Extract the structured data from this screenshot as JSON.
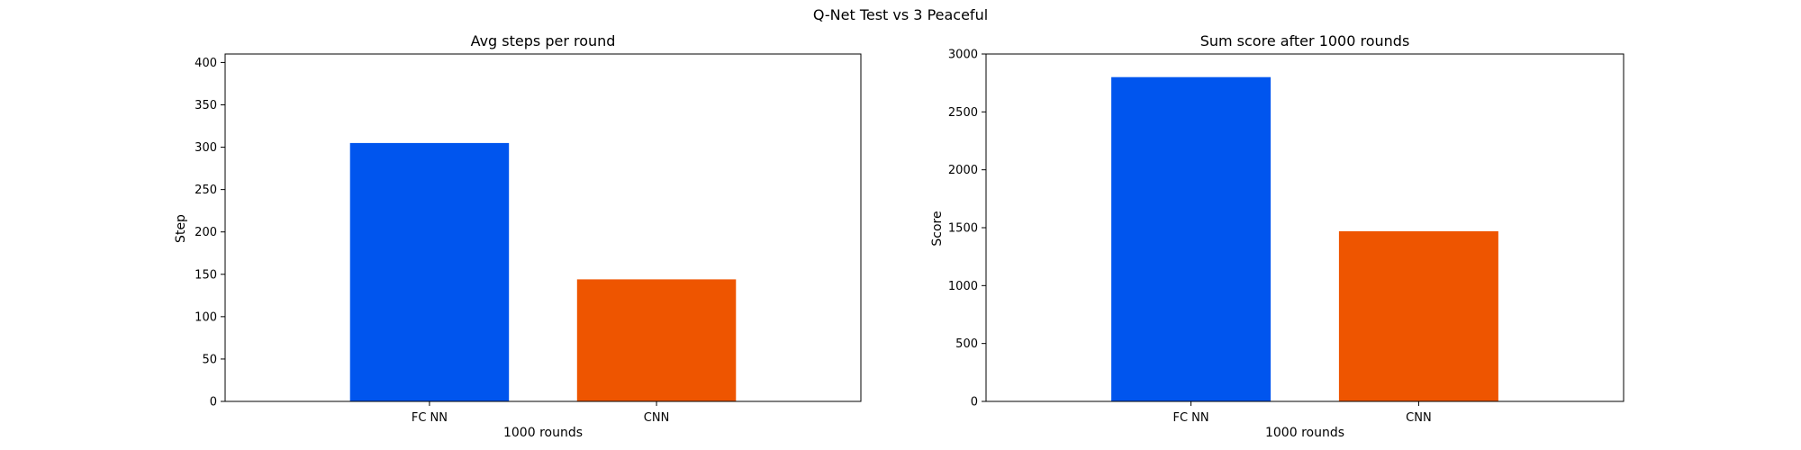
{
  "suptitle": "Q-Net Test vs 3 Peaceful",
  "colors": {
    "fc_nn": "#0055ee",
    "cnn": "#ee5500"
  },
  "chart_data": [
    {
      "type": "bar",
      "title": "Avg steps per round",
      "xlabel": "1000 rounds",
      "ylabel": "Step",
      "categories": [
        "FC NN",
        "CNN"
      ],
      "values": [
        305,
        144
      ],
      "ylim": [
        0,
        410
      ],
      "yticks": [
        0,
        50,
        100,
        150,
        200,
        250,
        300,
        350,
        400
      ],
      "grid": false,
      "legend": "none"
    },
    {
      "type": "bar",
      "title": "Sum score after 1000 rounds",
      "xlabel": "1000 rounds",
      "ylabel": "Score",
      "categories": [
        "FC NN",
        "CNN"
      ],
      "values": [
        2800,
        1470
      ],
      "ylim": [
        0,
        3000
      ],
      "yticks": [
        0,
        500,
        1000,
        1500,
        2000,
        2500,
        3000
      ],
      "grid": false,
      "legend": "none"
    }
  ]
}
